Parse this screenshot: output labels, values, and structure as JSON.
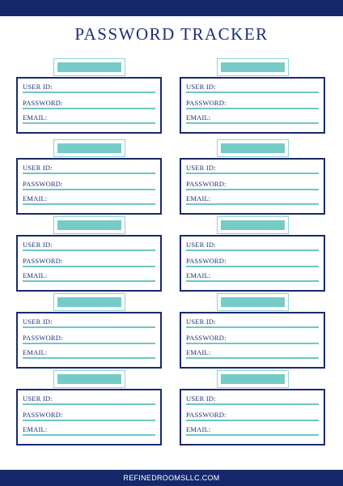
{
  "title": "PASSWORD TRACKER",
  "footer": "REFINEDROOMSLLC.COM",
  "field_labels": {
    "user_id": "USER ID:",
    "password": "PASSWORD:",
    "email": "EMAIL:"
  },
  "colors": {
    "navy": "#14286a",
    "teal": "#76cbc6"
  }
}
